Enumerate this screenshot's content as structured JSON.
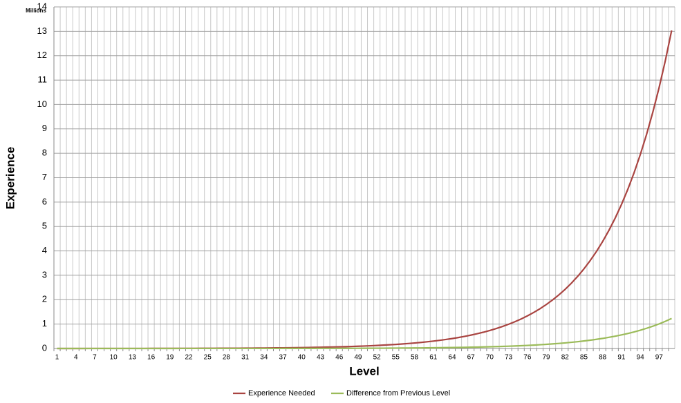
{
  "chart_data": {
    "type": "line",
    "y_axis_label": "Experience",
    "y_unit_label": "Millions",
    "x_axis_label": "Level",
    "categories": [
      "1",
      null,
      null,
      "4",
      null,
      null,
      "7",
      null,
      null,
      "10",
      null,
      null,
      "13",
      null,
      null,
      "16",
      null,
      null,
      "19",
      null,
      null,
      "22",
      null,
      null,
      "25",
      null,
      null,
      "28",
      null,
      null,
      "31",
      null,
      null,
      "34",
      null,
      null,
      "37",
      null,
      null,
      "40",
      null,
      null,
      "43",
      null,
      null,
      "46",
      null,
      null,
      "49",
      null,
      null,
      "52",
      null,
      null,
      "55",
      null,
      null,
      "58",
      null,
      null,
      "61",
      null,
      null,
      "64",
      null,
      null,
      "67",
      null,
      null,
      "70",
      null,
      null,
      "73",
      null,
      null,
      "76",
      null,
      null,
      "79",
      null,
      null,
      "82",
      null,
      null,
      "85",
      null,
      null,
      "88",
      null,
      null,
      "91",
      null,
      null,
      "94",
      null,
      null,
      "97",
      null,
      null
    ],
    "series": [
      {
        "name": "Experience Needed",
        "color": "#a94441",
        "values": [
          0,
          0,
          0,
          0,
          0,
          0.001,
          0.001,
          0.001,
          0.001,
          0.001,
          0.001,
          0.002,
          0.002,
          0.002,
          0.002,
          0.003,
          0.003,
          0.004,
          0.004,
          0.004,
          0.005,
          0.006,
          0.006,
          0.007,
          0.008,
          0.009,
          0.01,
          0.011,
          0.012,
          0.013,
          0.015,
          0.016,
          0.018,
          0.02,
          0.022,
          0.025,
          0.027,
          0.03,
          0.034,
          0.037,
          0.041,
          0.046,
          0.05,
          0.056,
          0.062,
          0.068,
          0.075,
          0.083,
          0.092,
          0.101,
          0.112,
          0.124,
          0.137,
          0.151,
          0.167,
          0.184,
          0.203,
          0.224,
          0.248,
          0.274,
          0.302,
          0.334,
          0.369,
          0.407,
          0.449,
          0.496,
          0.548,
          0.605,
          0.668,
          0.738,
          0.814,
          0.899,
          0.993,
          1.096,
          1.21,
          1.336,
          1.476,
          1.629,
          1.799,
          1.986,
          2.193,
          2.421,
          2.673,
          2.951,
          3.259,
          3.598,
          3.972,
          4.386,
          4.842,
          5.346,
          5.903,
          6.517,
          7.196,
          7.945,
          8.772,
          9.685,
          10.693,
          11.806,
          13.034
        ]
      },
      {
        "name": "Difference from Previous Level",
        "color": "#9bbb59",
        "values": [
          0,
          0,
          0,
          0,
          0,
          0,
          0,
          0,
          0,
          0,
          0,
          0,
          0,
          0,
          0,
          0,
          0,
          0,
          0,
          0,
          0.001,
          0.001,
          0.001,
          0.001,
          0.001,
          0.001,
          0.001,
          0.001,
          0.001,
          0.001,
          0.001,
          0.002,
          0.002,
          0.002,
          0.002,
          0.002,
          0.003,
          0.003,
          0.003,
          0.004,
          0.004,
          0.004,
          0.005,
          0.005,
          0.006,
          0.006,
          0.007,
          0.008,
          0.009,
          0.01,
          0.011,
          0.012,
          0.013,
          0.014,
          0.016,
          0.017,
          0.019,
          0.021,
          0.023,
          0.026,
          0.029,
          0.032,
          0.035,
          0.038,
          0.042,
          0.047,
          0.052,
          0.057,
          0.063,
          0.07,
          0.077,
          0.085,
          0.094,
          0.103,
          0.114,
          0.126,
          0.139,
          0.154,
          0.17,
          0.187,
          0.207,
          0.228,
          0.252,
          0.278,
          0.307,
          0.339,
          0.375,
          0.413,
          0.457,
          0.504,
          0.556,
          0.614,
          0.678,
          0.749,
          0.827,
          0.913,
          1.008,
          1.113,
          1.229
        ]
      }
    ],
    "ylim": [
      0,
      14
    ],
    "yticks": [
      0,
      1,
      2,
      3,
      4,
      5,
      6,
      7,
      8,
      9,
      10,
      11,
      12,
      13,
      14
    ],
    "grid": true,
    "legend": "bottom"
  }
}
